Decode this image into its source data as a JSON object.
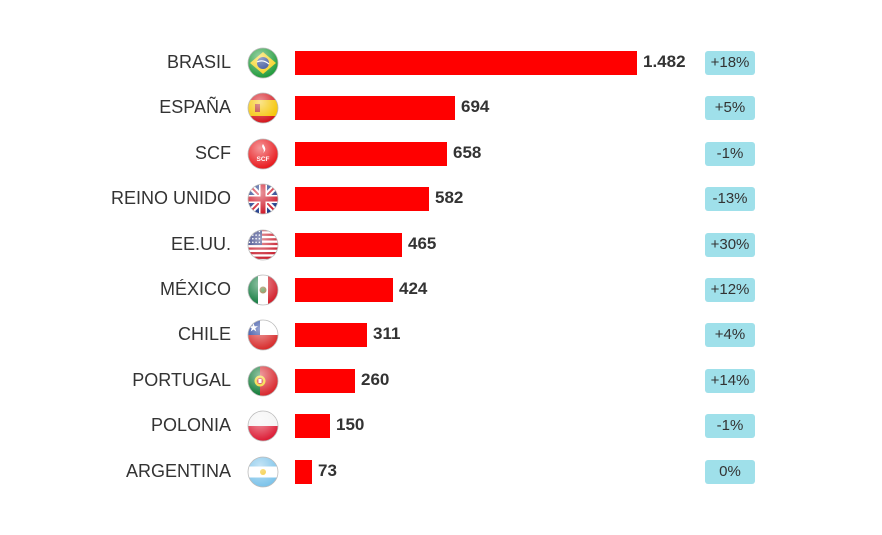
{
  "chart_data": {
    "type": "bar",
    "orientation": "horizontal",
    "categories": [
      "BRASIL",
      "ESPAÑA",
      "SCF",
      "REINO UNIDO",
      "EE.UU.",
      "MÉXICO",
      "CHILE",
      "PORTUGAL",
      "POLONIA",
      "ARGENTINA"
    ],
    "values": [
      1482,
      694,
      658,
      582,
      465,
      424,
      311,
      260,
      150,
      73
    ],
    "value_labels": [
      "1.482",
      "694",
      "658",
      "582",
      "465",
      "424",
      "311",
      "260",
      "150",
      "73"
    ],
    "changes": [
      "+18%",
      "+5%",
      "-1%",
      "-13%",
      "+30%",
      "+12%",
      "+4%",
      "+14%",
      "-1%",
      "0%"
    ],
    "flags": [
      "brazil-flag-icon",
      "spain-flag-icon",
      "scf-logo-icon",
      "uk-flag-icon",
      "usa-flag-icon",
      "mexico-flag-icon",
      "chile-flag-icon",
      "portugal-flag-icon",
      "poland-flag-icon",
      "argentina-flag-icon"
    ],
    "colors": {
      "bar": "#ff0000",
      "change_badge": "#9fe0ea"
    },
    "grid": false,
    "legend": "none"
  }
}
